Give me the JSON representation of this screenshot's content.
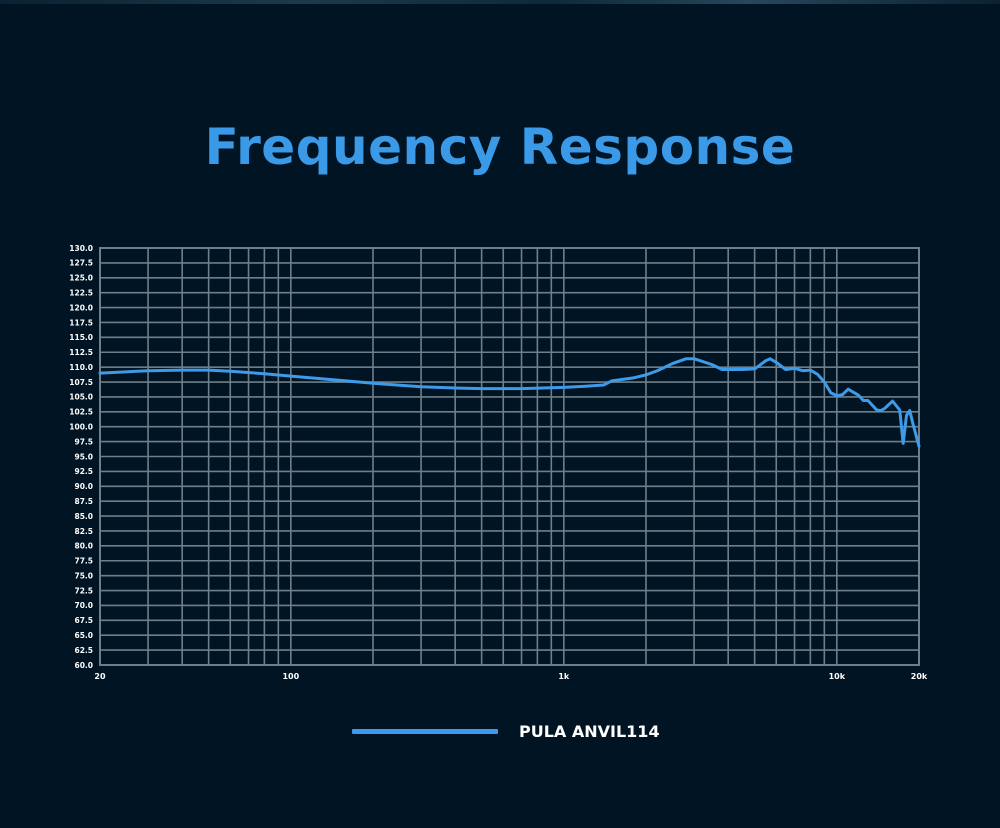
{
  "page": {
    "title": "Frequency Response"
  },
  "colors": {
    "background": "#011423",
    "title": "#3a9ae8",
    "grid": "#6e7f8c",
    "curve": "#3d9be9",
    "text": "#ffffff"
  },
  "chart_data": {
    "type": "line",
    "title": "Frequency Response",
    "xlabel": "",
    "ylabel": "",
    "x_scale": "log",
    "xlim": [
      20,
      20000
    ],
    "ylim": [
      60,
      130
    ],
    "grid": true,
    "legend_position": "bottom-center",
    "x_ticks": [
      {
        "value": 20,
        "label": "20"
      },
      {
        "value": 100,
        "label": "100"
      },
      {
        "value": 1000,
        "label": "1k"
      },
      {
        "value": 10000,
        "label": "10k"
      },
      {
        "value": 20000,
        "label": "20k"
      }
    ],
    "y_ticks": [
      "60.0",
      "62.5",
      "65.0",
      "67.5",
      "70.0",
      "72.5",
      "75.0",
      "77.5",
      "80.0",
      "82.5",
      "85.0",
      "87.5",
      "90.0",
      "92.5",
      "95.0",
      "97.5",
      "100.0",
      "102.5",
      "105.0",
      "107.5",
      "110.0",
      "112.5",
      "115.0",
      "117.5",
      "120.0",
      "122.5",
      "125.0",
      "127.5",
      "130.0"
    ],
    "series": [
      {
        "name": "PULA ANVIL114",
        "color": "#3d9be9",
        "x": [
          20,
          30,
          40,
          50,
          60,
          80,
          100,
          150,
          200,
          300,
          400,
          500,
          700,
          1000,
          1200,
          1400,
          1500,
          1800,
          2000,
          2200,
          2500,
          2800,
          3000,
          3200,
          3500,
          3800,
          4000,
          4500,
          5000,
          5500,
          5700,
          6000,
          6500,
          7000,
          7500,
          8000,
          8500,
          9000,
          9500,
          10000,
          10500,
          11000,
          12000,
          12500,
          13000,
          14000,
          14500,
          15000,
          16000,
          17000,
          17500,
          18000,
          18500,
          19000,
          19500,
          20000
        ],
        "y": [
          109.0,
          109.4,
          109.5,
          109.5,
          109.3,
          108.9,
          108.5,
          107.8,
          107.3,
          106.7,
          106.5,
          106.4,
          106.4,
          106.6,
          106.8,
          107.0,
          107.7,
          108.2,
          108.7,
          109.4,
          110.6,
          111.4,
          111.4,
          111.0,
          110.4,
          109.6,
          109.6,
          109.6,
          109.7,
          111.1,
          111.4,
          110.8,
          109.6,
          109.8,
          109.4,
          109.5,
          108.8,
          107.5,
          105.7,
          105.2,
          105.4,
          106.3,
          105.3,
          104.4,
          104.4,
          102.8,
          102.7,
          103.1,
          104.3,
          102.8,
          97.2,
          101.9,
          102.7,
          100.5,
          98.6,
          96.7
        ]
      }
    ]
  },
  "legend": {
    "items": [
      {
        "label": "PULA ANVIL114",
        "color": "#3d9be9"
      }
    ]
  }
}
